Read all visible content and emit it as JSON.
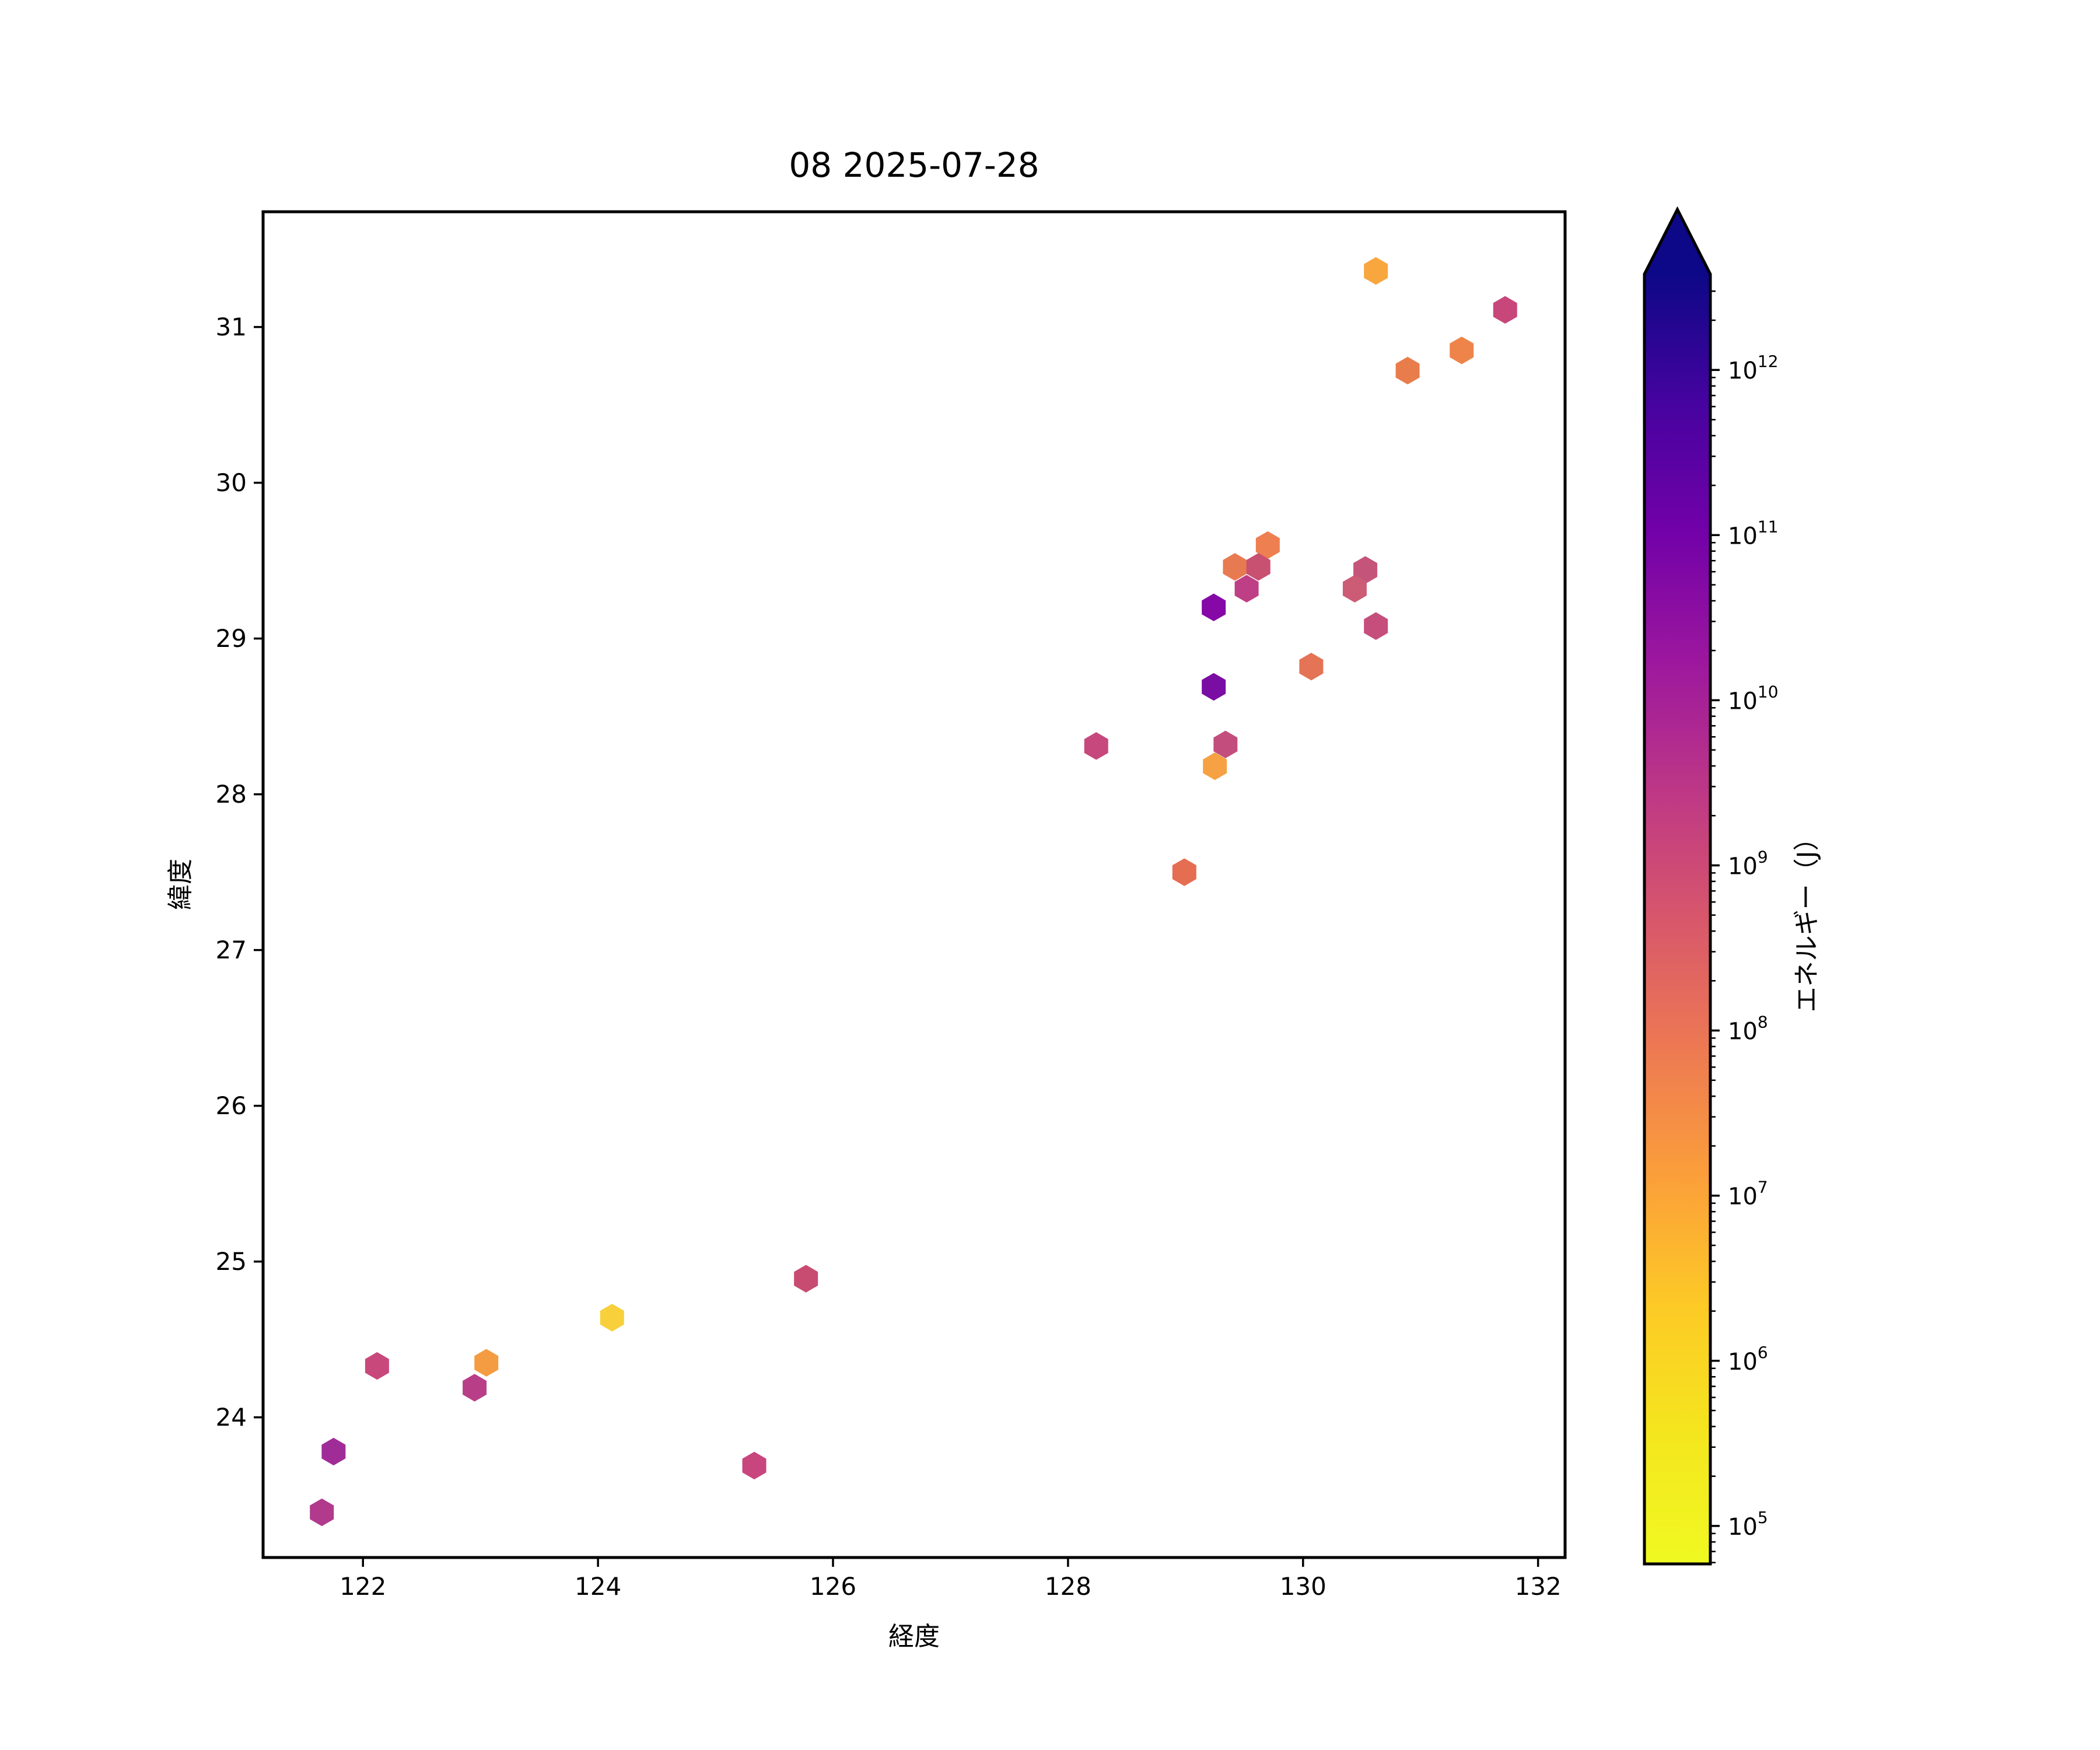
{
  "title": "08 2025-07-28",
  "chart_data": {
    "type": "scatter",
    "marker": "hexagon",
    "title": "08 2025-07-28",
    "xlabel": "経度",
    "ylabel": "緯度",
    "xlim": [
      121.15,
      132.23
    ],
    "ylim": [
      23.1,
      31.74
    ],
    "xticks": [
      122,
      124,
      126,
      128,
      130,
      132
    ],
    "yticks": [
      24,
      25,
      26,
      27,
      28,
      29,
      30,
      31
    ],
    "grid": false,
    "legend": "none",
    "colorbar": {
      "label": "エネルギー（J）",
      "scale": "log",
      "unit": "J",
      "colormap": "plasma_r",
      "extend": "max",
      "vmin_exp": 4.77,
      "vmax_exp": 12.58,
      "tick_exponents": [
        5,
        6,
        7,
        8,
        9,
        10,
        11,
        12
      ],
      "gradient": [
        {
          "offset": 0.0,
          "color": "#f0f921"
        },
        {
          "offset": 0.1,
          "color": "#f4e61e"
        },
        {
          "offset": 0.2,
          "color": "#fdca26"
        },
        {
          "offset": 0.3,
          "color": "#fb9f3a"
        },
        {
          "offset": 0.4,
          "color": "#ed7953"
        },
        {
          "offset": 0.5,
          "color": "#d8576b"
        },
        {
          "offset": 0.6,
          "color": "#bd3786"
        },
        {
          "offset": 0.7,
          "color": "#9c179e"
        },
        {
          "offset": 0.8,
          "color": "#7201a8"
        },
        {
          "offset": 0.9,
          "color": "#46039f"
        },
        {
          "offset": 1.0,
          "color": "#0d0887"
        }
      ]
    },
    "points": [
      {
        "lon": 121.65,
        "lat": 23.39,
        "energy": 3700000000.0,
        "color": "#b13a8c"
      },
      {
        "lon": 121.75,
        "lat": 23.78,
        "energy": 11000000000.0,
        "color": "#a02d97"
      },
      {
        "lon": 122.12,
        "lat": 24.33,
        "energy": 740000000.0,
        "color": "#c8487b"
      },
      {
        "lon": 123.05,
        "lat": 24.35,
        "energy": 17000000.0,
        "color": "#f49c42"
      },
      {
        "lon": 122.95,
        "lat": 24.19,
        "energy": 2400000000.0,
        "color": "#b83f87"
      },
      {
        "lon": 124.12,
        "lat": 24.64,
        "energy": 1400000.0,
        "color": "#f7d03c"
      },
      {
        "lon": 125.33,
        "lat": 23.69,
        "energy": 810000000.0,
        "color": "#c8457e"
      },
      {
        "lon": 125.77,
        "lat": 24.89,
        "energy": 560000000.0,
        "color": "#c84b72"
      },
      {
        "lon": 128.99,
        "lat": 27.5,
        "energy": 120000000.0,
        "color": "#e56d51"
      },
      {
        "lon": 128.24,
        "lat": 28.31,
        "energy": 810000000.0,
        "color": "#c6487c"
      },
      {
        "lon": 129.34,
        "lat": 28.32,
        "energy": 680000000.0,
        "color": "#c34e7e"
      },
      {
        "lon": 129.25,
        "lat": 28.18,
        "energy": 13000000.0,
        "color": "#f6a143"
      },
      {
        "lon": 129.24,
        "lat": 28.69,
        "energy": 79000000000.0,
        "color": "#7a0da3"
      },
      {
        "lon": 130.07,
        "lat": 28.82,
        "energy": 100000000.0,
        "color": "#e57355"
      },
      {
        "lon": 129.42,
        "lat": 29.46,
        "energy": 66000000.0,
        "color": "#e87a52"
      },
      {
        "lon": 129.7,
        "lat": 29.6,
        "energy": 50000000.0,
        "color": "#ee7f51"
      },
      {
        "lon": 129.62,
        "lat": 29.46,
        "energy": 480000000.0,
        "color": "#c85070"
      },
      {
        "lon": 129.52,
        "lat": 29.32,
        "energy": 1800000000.0,
        "color": "#be3f85"
      },
      {
        "lon": 129.24,
        "lat": 29.2,
        "energy": 55000000000.0,
        "color": "#8508a7"
      },
      {
        "lon": 130.53,
        "lat": 29.44,
        "energy": 480000000.0,
        "color": "#c5547b"
      },
      {
        "lon": 130.44,
        "lat": 29.32,
        "energy": 330000000.0,
        "color": "#cc5b76"
      },
      {
        "lon": 130.62,
        "lat": 29.08,
        "energy": 620000000.0,
        "color": "#c54e7c"
      },
      {
        "lon": 130.62,
        "lat": 31.36,
        "energy": 10000000.0,
        "color": "#f8a63e"
      },
      {
        "lon": 131.72,
        "lat": 31.11,
        "energy": 810000000.0,
        "color": "#c7477b"
      },
      {
        "lon": 131.35,
        "lat": 30.85,
        "energy": 35000000.0,
        "color": "#ee8449"
      },
      {
        "lon": 130.89,
        "lat": 30.72,
        "energy": 50000000.0,
        "color": "#e97c4b"
      }
    ]
  }
}
